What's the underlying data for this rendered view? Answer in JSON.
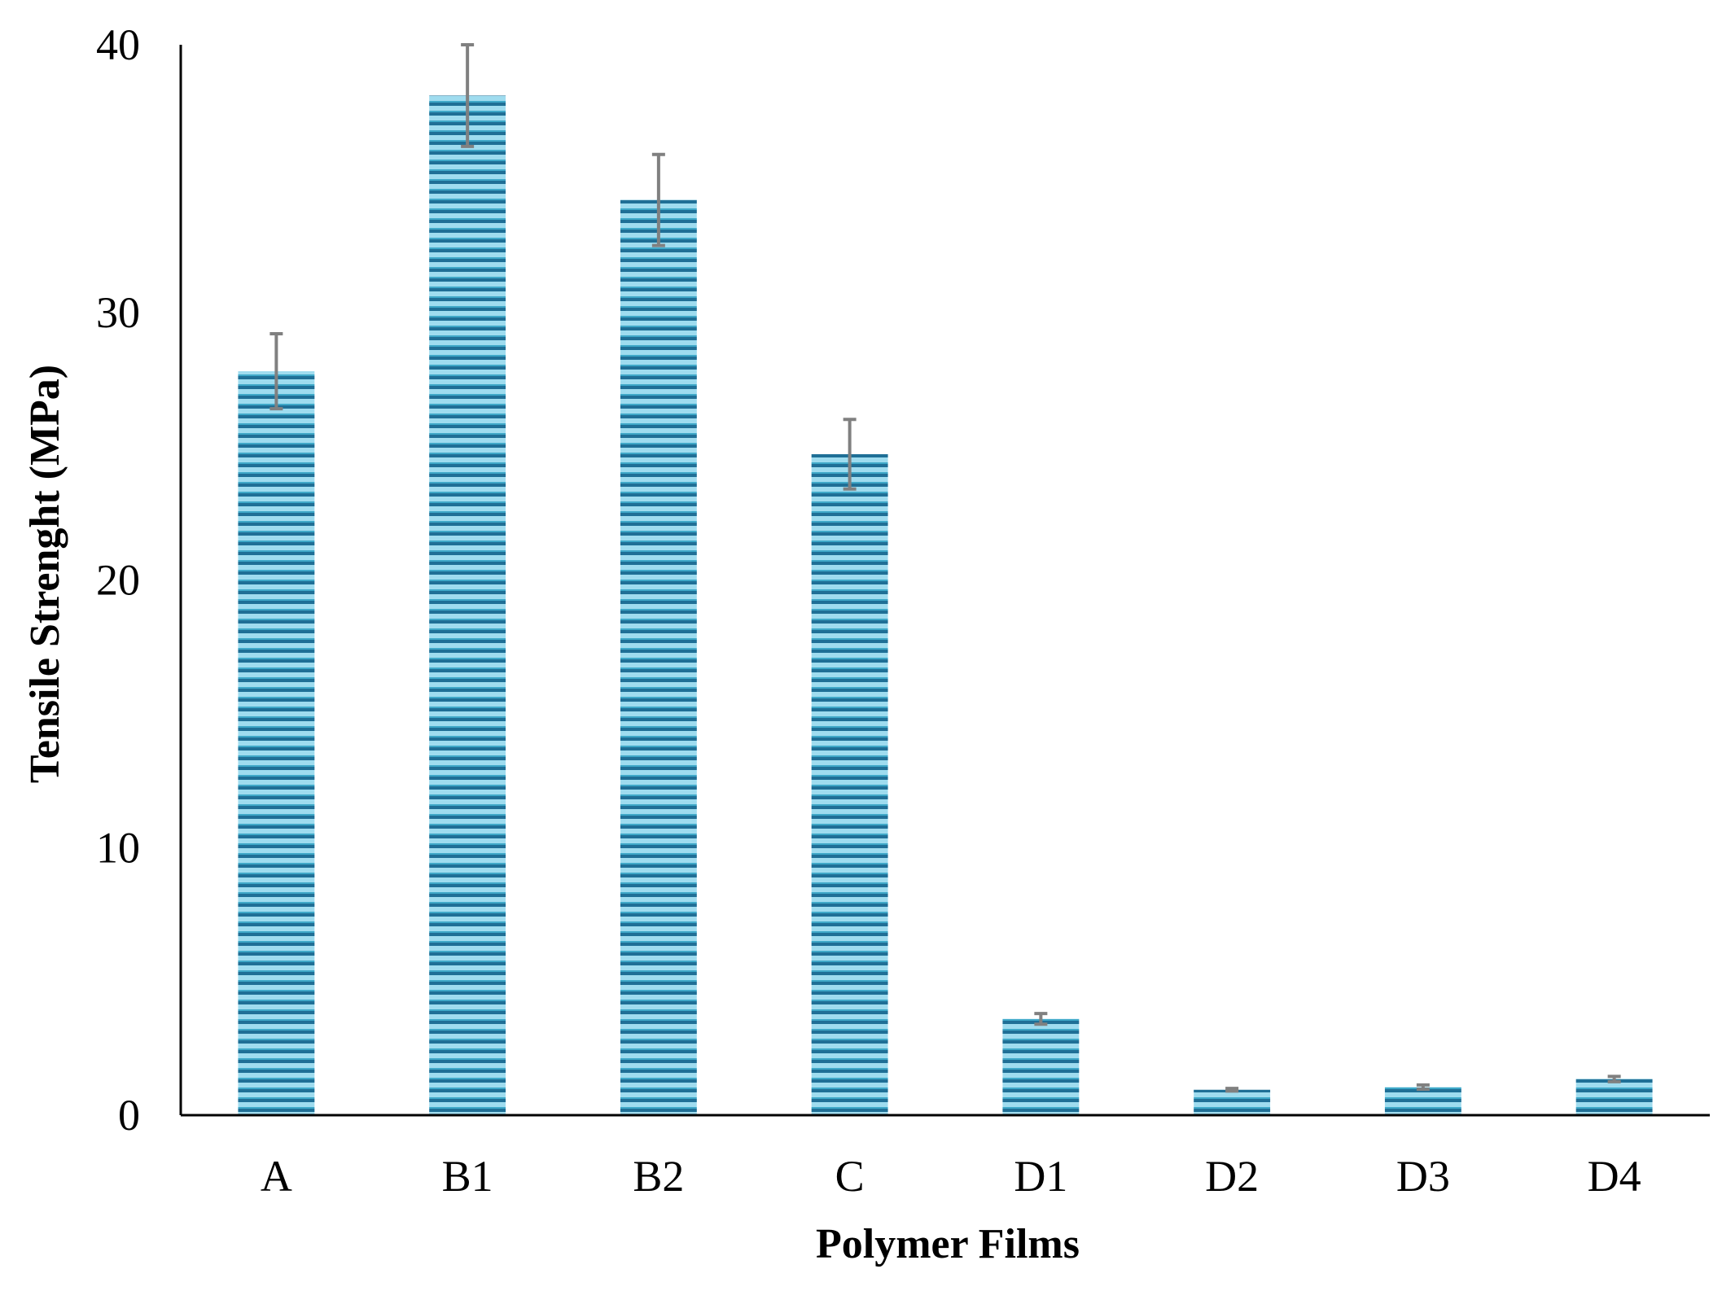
{
  "colors": {
    "bar_dark": "#1f6f96",
    "bar_light": "#9fdcef",
    "bar_mid": "#3fa8c8",
    "error_bar": "#808080",
    "axis": "#000000"
  },
  "chart_data": {
    "type": "bar",
    "title": "",
    "xlabel": "Polymer  Films",
    "ylabel": "Tensile Strenght (MPa)",
    "categories": [
      "A",
      "B1",
      "B2",
      "C",
      "D1",
      "D2",
      "D3",
      "D4"
    ],
    "values": [
      27.8,
      38.1,
      34.2,
      24.7,
      3.6,
      0.95,
      1.05,
      1.35
    ],
    "errors": [
      1.4,
      1.9,
      1.7,
      1.3,
      0.2,
      0.05,
      0.08,
      0.1
    ],
    "ylim": [
      0,
      40
    ],
    "yticks": [
      0,
      10,
      20,
      30,
      40
    ],
    "grid": false,
    "legend": "none",
    "bar_fill": "horizontal-stripes"
  }
}
